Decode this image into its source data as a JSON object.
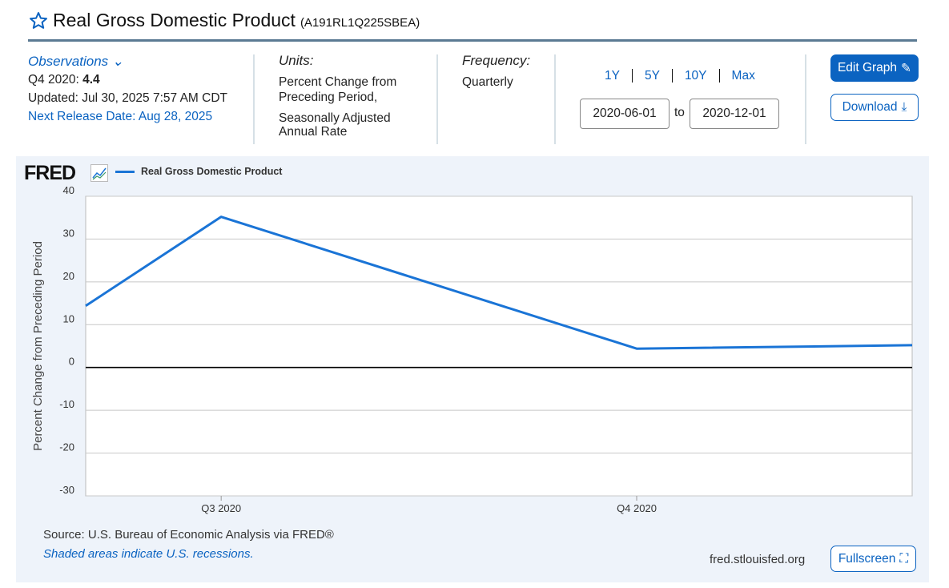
{
  "header": {
    "title": "Real Gross Domestic Product",
    "series_id": "(A191RL1Q225SBEA)",
    "star_icon": "star-outline-icon"
  },
  "observations": {
    "label": "Observations",
    "latest_label": "Q4 2020:",
    "latest_value": "4.4",
    "updated": "Updated: Jul 30, 2025 7:57 AM CDT",
    "next_release": "Next Release Date: Aug 28, 2025"
  },
  "units": {
    "label": "Units:",
    "line1": "Percent Change from",
    "line2": "Preceding Period,",
    "line3": "Seasonally Adjusted",
    "line4": "Annual Rate"
  },
  "frequency": {
    "label": "Frequency:",
    "value": "Quarterly"
  },
  "range": {
    "buttons": [
      "1Y",
      "5Y",
      "10Y",
      "Max"
    ],
    "start": "2020-06-01",
    "to": "to",
    "end": "2020-12-01"
  },
  "actions": {
    "edit": "Edit Graph",
    "download": "Download",
    "fullscreen": "Fullscreen"
  },
  "colors": {
    "accent": "#0b63c1",
    "line": "#1a74d6",
    "panel": "#eef3fa"
  },
  "footer": {
    "source": "Source: U.S. Bureau of Economic Analysis via FRED®",
    "recessions": "Shaded areas indicate U.S. recessions.",
    "site": "fred.stlouisfed.org"
  },
  "logo": "FRED",
  "chart_data": {
    "type": "line",
    "legend": [
      "Real Gross Domestic Product"
    ],
    "ylabel": "Percent Change from Preceding Period",
    "ylim": [
      -30,
      40
    ],
    "yticks": [
      40,
      30,
      20,
      10,
      0,
      -10,
      -20,
      -30
    ],
    "xlim": [
      "2020-06-01",
      "2020-12-01"
    ],
    "xticks": [
      {
        "date": "2020-07-01",
        "label": "Q3 2020"
      },
      {
        "date": "2020-10-01",
        "label": "Q4 2020"
      }
    ],
    "grid": true,
    "series": [
      {
        "name": "Real Gross Domestic Product",
        "points": [
          [
            "2020-06-01",
            14.4
          ],
          [
            "2020-07-01",
            35.2
          ],
          [
            "2020-10-01",
            4.4
          ],
          [
            "2020-12-01",
            5.2
          ]
        ]
      }
    ]
  }
}
